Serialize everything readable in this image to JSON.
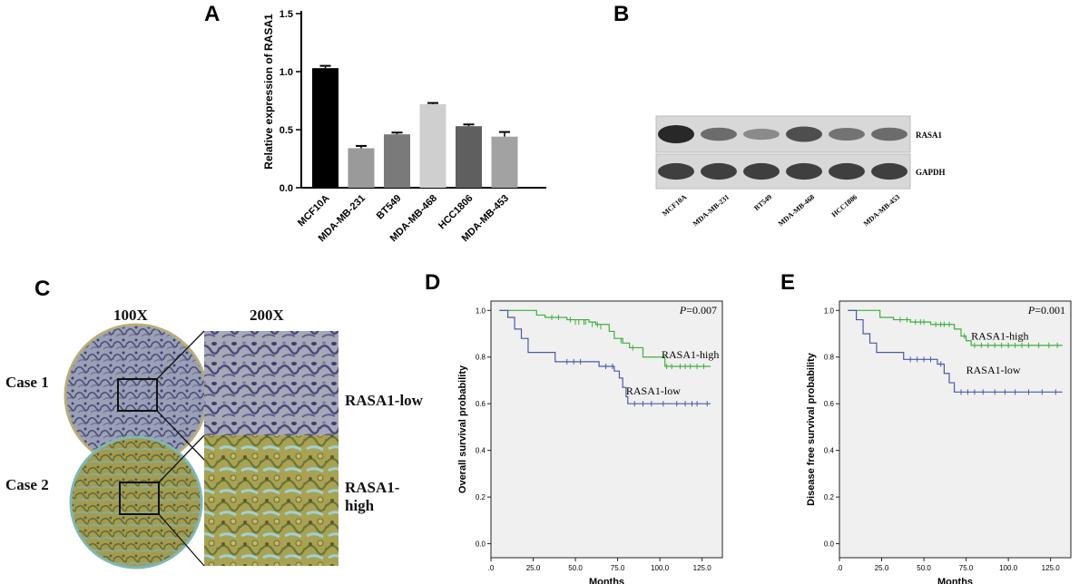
{
  "panels": {
    "a": "A",
    "b": "B",
    "c": "C",
    "d": "D",
    "e": "E"
  },
  "panel_c": {
    "mag_low": "100X",
    "mag_high": "200X",
    "cases": [
      "Case 1",
      "Case 2"
    ],
    "labels": [
      "RASA1-low",
      "RASA1-high"
    ]
  },
  "panel_b": {
    "bands": [
      "RASA1",
      "GAPDH"
    ],
    "lanes": [
      "MCF10A",
      "MDA-MB-231",
      "BT549",
      "MDA-MB-468",
      "HCC1806",
      "MDA-MB-453"
    ],
    "rasa1_intensity": [
      1.0,
      0.55,
      0.35,
      0.75,
      0.5,
      0.55
    ],
    "gapdh_intensity": [
      0.85,
      0.85,
      0.85,
      0.85,
      0.85,
      0.85
    ]
  },
  "colors": {
    "high": "#3fae3f",
    "low": "#4a5aa8",
    "plot_bg": "#f0f0f0"
  },
  "chart_data": [
    {
      "type": "bar",
      "ylabel": "Relative expression of RASA1",
      "categories": [
        "MCF10A",
        "MDA-MB-231",
        "BT549",
        "MDA-MB-468",
        "HCC1806",
        "MDA-MB-453"
      ],
      "values": [
        1.03,
        0.34,
        0.46,
        0.72,
        0.53,
        0.44
      ],
      "errors": [
        0.02,
        0.02,
        0.015,
        0.01,
        0.015,
        0.04
      ],
      "colors": [
        "#000000",
        "#9a9a9a",
        "#7a7a7a",
        "#cfcfcf",
        "#5f5f5f",
        "#a2a2a2"
      ],
      "yticks": [
        "0.0",
        "0.5",
        "1.0",
        "1.5"
      ],
      "ylim": [
        0,
        1.5
      ]
    },
    {
      "type": "line",
      "xlabel": "Months",
      "ylabel": "Overall survival probability",
      "pvalue": "=0.007",
      "p_italic": "P",
      "xlim": [
        0,
        137
      ],
      "ylim": [
        0,
        1.0
      ],
      "xticks": [
        ".0",
        "25.0",
        "50.0",
        "75.0",
        "100.0",
        "125.0"
      ],
      "yticks": [
        "0.0",
        "0.2",
        "0.4",
        "0.6",
        "0.8",
        "1.0"
      ],
      "series": [
        {
          "name": "RASA1-high",
          "color": "#3fae3f",
          "steps": [
            [
              5,
              1.0
            ],
            [
              27,
              0.98
            ],
            [
              32,
              0.97
            ],
            [
              45,
              0.96
            ],
            [
              58,
              0.95
            ],
            [
              62,
              0.94
            ],
            [
              70,
              0.91
            ],
            [
              73,
              0.88
            ],
            [
              78,
              0.86
            ],
            [
              82,
              0.84
            ],
            [
              90,
              0.8
            ],
            [
              103,
              0.76
            ],
            [
              130,
              0.76
            ]
          ],
          "censors": [
            [
              36,
              0.97
            ],
            [
              40,
              0.97
            ],
            [
              47,
              0.96
            ],
            [
              50,
              0.95
            ],
            [
              52,
              0.95
            ],
            [
              55,
              0.95
            ],
            [
              56,
              0.95
            ],
            [
              60,
              0.94
            ],
            [
              63,
              0.94
            ],
            [
              65,
              0.93
            ],
            [
              77,
              0.87
            ],
            [
              84,
              0.84
            ],
            [
              104,
              0.76
            ],
            [
              107,
              0.76
            ],
            [
              112,
              0.76
            ],
            [
              115,
              0.76
            ],
            [
              118,
              0.76
            ],
            [
              122,
              0.76
            ],
            [
              126,
              0.76
            ]
          ]
        },
        {
          "name": "RASA1-low",
          "color": "#4a5aa8",
          "steps": [
            [
              5,
              1.0
            ],
            [
              10,
              0.97
            ],
            [
              14,
              0.92
            ],
            [
              18,
              0.88
            ],
            [
              22,
              0.82
            ],
            [
              38,
              0.78
            ],
            [
              64,
              0.76
            ],
            [
              73,
              0.74
            ],
            [
              76,
              0.71
            ],
            [
              78,
              0.67
            ],
            [
              80,
              0.63
            ],
            [
              81,
              0.6
            ],
            [
              130,
              0.6
            ]
          ],
          "censors": [
            [
              45,
              0.78
            ],
            [
              49,
              0.78
            ],
            [
              53,
              0.78
            ],
            [
              68,
              0.76
            ],
            [
              72,
              0.76
            ],
            [
              85,
              0.6
            ],
            [
              90,
              0.6
            ],
            [
              95,
              0.6
            ],
            [
              102,
              0.6
            ],
            [
              110,
              0.6
            ],
            [
              115,
              0.6
            ],
            [
              119,
              0.6
            ],
            [
              122,
              0.6
            ],
            [
              128,
              0.6
            ]
          ]
        }
      ]
    },
    {
      "type": "line",
      "xlabel": "Months",
      "ylabel": "Disease free survival probability",
      "pvalue": "=0.001",
      "p_italic": "P",
      "xlim": [
        0,
        137
      ],
      "ylim": [
        0,
        1.0
      ],
      "xticks": [
        ".0",
        "25.0",
        "50.0",
        "75.0",
        "100.0",
        "125.0"
      ],
      "yticks": [
        "0.0",
        "0.2",
        "0.4",
        "0.6",
        "0.8",
        "1.0"
      ],
      "series": [
        {
          "name": "RASA1-high",
          "color": "#3fae3f",
          "steps": [
            [
              5,
              1.0
            ],
            [
              24,
              0.97
            ],
            [
              32,
              0.96
            ],
            [
              42,
              0.95
            ],
            [
              54,
              0.94
            ],
            [
              68,
              0.92
            ],
            [
              72,
              0.89
            ],
            [
              75,
              0.87
            ],
            [
              78,
              0.85
            ],
            [
              132,
              0.85
            ]
          ],
          "censors": [
            [
              36,
              0.96
            ],
            [
              40,
              0.96
            ],
            [
              45,
              0.95
            ],
            [
              48,
              0.95
            ],
            [
              50,
              0.95
            ],
            [
              57,
              0.94
            ],
            [
              60,
              0.94
            ],
            [
              62,
              0.94
            ],
            [
              65,
              0.94
            ],
            [
              74,
              0.89
            ],
            [
              80,
              0.85
            ],
            [
              84,
              0.85
            ],
            [
              88,
              0.85
            ],
            [
              92,
              0.85
            ],
            [
              96,
              0.85
            ],
            [
              100,
              0.85
            ],
            [
              104,
              0.85
            ],
            [
              108,
              0.85
            ],
            [
              112,
              0.85
            ],
            [
              118,
              0.85
            ],
            [
              124,
              0.85
            ],
            [
              129,
              0.85
            ]
          ]
        },
        {
          "name": "RASA1-low",
          "color": "#4a5aa8",
          "steps": [
            [
              5,
              1.0
            ],
            [
              10,
              0.96
            ],
            [
              14,
              0.9
            ],
            [
              18,
              0.86
            ],
            [
              22,
              0.82
            ],
            [
              38,
              0.79
            ],
            [
              58,
              0.77
            ],
            [
              62,
              0.73
            ],
            [
              65,
              0.69
            ],
            [
              68,
              0.65
            ],
            [
              132,
              0.65
            ]
          ],
          "censors": [
            [
              42,
              0.79
            ],
            [
              46,
              0.79
            ],
            [
              50,
              0.79
            ],
            [
              54,
              0.79
            ],
            [
              60,
              0.77
            ],
            [
              72,
              0.65
            ],
            [
              76,
              0.65
            ],
            [
              80,
              0.65
            ],
            [
              85,
              0.65
            ],
            [
              92,
              0.65
            ],
            [
              98,
              0.65
            ],
            [
              104,
              0.65
            ],
            [
              112,
              0.65
            ],
            [
              120,
              0.65
            ],
            [
              128,
              0.65
            ]
          ]
        }
      ]
    }
  ]
}
